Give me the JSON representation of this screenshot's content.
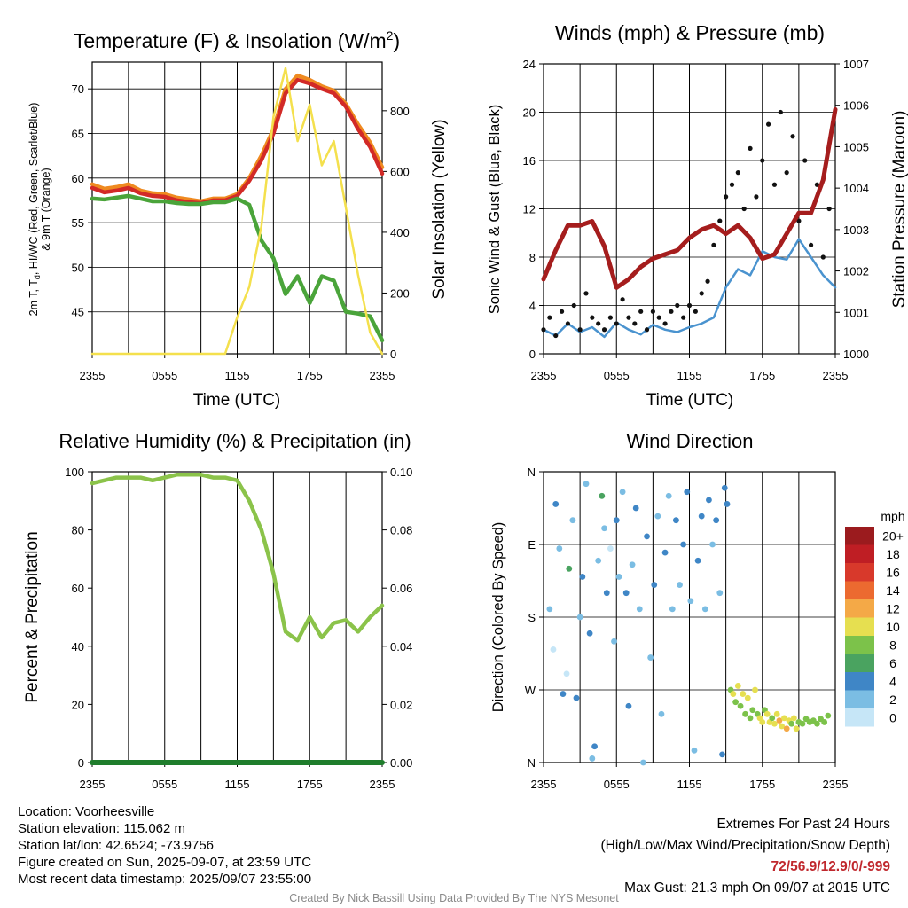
{
  "chart_data": [
    {
      "type": "line",
      "title": "Temperature (F) & Insolation (W/m²)",
      "xlabel": "Time (UTC)",
      "ylabel_lines": [
        "2m T, Td, HI/WC (Red, Green, Scarlet/Blue)",
        "& 9m T (Orange)"
      ],
      "y2label": "Solar Insolation (Yellow)",
      "x_ticks": [
        "2355",
        "0555",
        "1155",
        "1755",
        "2355"
      ],
      "ylim": [
        40.3,
        73
      ],
      "y_ticks": [
        45,
        50,
        55,
        60,
        65,
        70
      ],
      "y2lim": [
        0,
        960
      ],
      "y2_ticks": [
        0,
        200,
        400,
        600,
        800
      ],
      "grid": true,
      "series": [
        {
          "color": "#ef8a20",
          "axis": "left",
          "x": [
            0,
            1,
            2,
            3,
            4,
            5,
            6,
            7,
            8,
            9,
            10,
            11,
            12,
            13,
            14,
            15,
            16,
            17,
            18,
            19,
            20,
            21,
            22,
            23,
            24
          ],
          "values": [
            59.3,
            58.8,
            59.0,
            59.3,
            58.6,
            58.3,
            58.2,
            57.8,
            57.6,
            57.4,
            57.7,
            57.7,
            58.2,
            60.0,
            62.5,
            65.5,
            70.0,
            71.5,
            71.0,
            70.3,
            69.8,
            68.3,
            66.0,
            64.0,
            61.2
          ]
        },
        {
          "color": "#d22a27",
          "axis": "left",
          "x": [
            0,
            1,
            2,
            3,
            4,
            5,
            6,
            7,
            8,
            9,
            10,
            11,
            12,
            13,
            14,
            15,
            16,
            17,
            18,
            19,
            20,
            21,
            22,
            23,
            24
          ],
          "values": [
            58.9,
            58.4,
            58.6,
            58.9,
            58.3,
            58.0,
            57.9,
            57.5,
            57.3,
            57.2,
            57.5,
            57.5,
            58.0,
            59.7,
            62.0,
            65.0,
            69.5,
            71.0,
            70.6,
            70.0,
            69.5,
            68.0,
            65.5,
            63.5,
            60.5
          ]
        },
        {
          "color": "#4aa43a",
          "axis": "left",
          "x": [
            0,
            1,
            2,
            3,
            4,
            5,
            6,
            7,
            8,
            9,
            10,
            11,
            12,
            13,
            14,
            15,
            16,
            17,
            18,
            19,
            20,
            21,
            22,
            23,
            24
          ],
          "values": [
            57.7,
            57.6,
            57.8,
            58.0,
            57.7,
            57.4,
            57.4,
            57.2,
            57.1,
            57.1,
            57.3,
            57.3,
            57.7,
            57.0,
            53.0,
            51.0,
            47.0,
            49.0,
            46.0,
            49.0,
            48.5,
            45.0,
            44.8,
            44.5,
            41.8
          ]
        },
        {
          "color": "#f4e04d",
          "axis": "right",
          "x": [
            0,
            1,
            2,
            3,
            4,
            5,
            6,
            7,
            8,
            9,
            10,
            11,
            12,
            13,
            14,
            15,
            16,
            17,
            18,
            19,
            20,
            21,
            22,
            23,
            24
          ],
          "values": [
            0,
            0,
            0,
            0,
            0,
            0,
            0,
            0,
            0,
            0,
            0,
            0,
            120,
            220,
            420,
            780,
            940,
            700,
            820,
            620,
            700,
            480,
            260,
            70,
            0
          ]
        }
      ]
    },
    {
      "type": "scatter",
      "title": "Winds (mph) & Pressure (mb)",
      "xlabel": "Time (UTC)",
      "ylabel": "Sonic Wind & Gust (Blue, Black)",
      "y2label": "Station Pressure (Maroon)",
      "x_ticks": [
        "2355",
        "0555",
        "1155",
        "1755",
        "2355"
      ],
      "ylim": [
        0,
        24
      ],
      "y_ticks": [
        0,
        4,
        8,
        12,
        16,
        20,
        24
      ],
      "y2lim": [
        1000,
        1007
      ],
      "y2_ticks": [
        1000,
        1001,
        1002,
        1003,
        1004,
        1005,
        1006,
        1007
      ],
      "grid": true,
      "series": [
        {
          "color": "#4a93cf",
          "kind": "line",
          "axis": "left",
          "x": [
            0,
            1,
            2,
            3,
            4,
            5,
            6,
            7,
            8,
            9,
            10,
            11,
            12,
            13,
            14,
            15,
            16,
            17,
            18,
            19,
            20,
            21,
            22,
            23,
            24
          ],
          "values": [
            2.0,
            1.5,
            2.5,
            1.8,
            2.2,
            1.4,
            2.6,
            2.0,
            1.6,
            2.4,
            2.0,
            1.8,
            2.2,
            2.5,
            3.0,
            5.5,
            7.0,
            6.5,
            8.5,
            8.0,
            7.8,
            9.5,
            8.0,
            6.5,
            5.5
          ]
        },
        {
          "color": "#111111",
          "kind": "points",
          "axis": "left",
          "x": [
            0,
            0.5,
            1,
            1.5,
            2,
            2.5,
            3,
            3.5,
            4,
            4.5,
            5,
            5.5,
            6,
            6.5,
            7,
            7.5,
            8,
            8.5,
            9,
            9.5,
            10,
            10.5,
            11,
            11.5,
            12,
            12.5,
            13,
            13.5,
            14,
            14.5,
            15,
            15.5,
            16,
            16.5,
            17,
            17.5,
            18,
            18.5,
            19,
            19.5,
            20,
            20.5,
            21,
            21.5,
            22,
            22.5,
            23,
            23.5
          ],
          "values": [
            2.0,
            3.0,
            1.5,
            3.5,
            2.5,
            4.0,
            2.0,
            5.0,
            3.0,
            2.5,
            2.0,
            3.0,
            2.5,
            4.5,
            3.0,
            2.5,
            3.5,
            2.0,
            3.5,
            3.0,
            2.5,
            3.5,
            4.0,
            3.0,
            4.0,
            3.5,
            5.0,
            6.0,
            9.0,
            11.0,
            13.0,
            14.0,
            15.0,
            12.0,
            17.0,
            13.0,
            16.0,
            19.0,
            14.0,
            20.0,
            15.0,
            18.0,
            11.0,
            16.0,
            9.0,
            14.0,
            8.0,
            12.0
          ]
        },
        {
          "color": "#a51d1d",
          "kind": "line",
          "axis": "right",
          "x": [
            0,
            1,
            2,
            3,
            4,
            5,
            6,
            7,
            8,
            9,
            10,
            11,
            12,
            13,
            14,
            15,
            16,
            17,
            18,
            19,
            20,
            21,
            22,
            23,
            24
          ],
          "values": [
            1001.8,
            1002.5,
            1003.1,
            1003.1,
            1003.2,
            1002.6,
            1001.6,
            1001.8,
            1002.1,
            1002.3,
            1002.4,
            1002.5,
            1002.8,
            1003.0,
            1003.1,
            1002.9,
            1003.1,
            1002.8,
            1002.3,
            1002.4,
            1002.9,
            1003.4,
            1003.4,
            1004.2,
            1005.9
          ]
        }
      ]
    },
    {
      "type": "line",
      "title": "Relative Humidity (%) & Precipitation (in)",
      "ylabel": "Percent & Precipitation",
      "x_ticks": [
        "2355",
        "0555",
        "1155",
        "1755",
        "2355"
      ],
      "ylim": [
        0,
        100
      ],
      "y_ticks": [
        0,
        20,
        40,
        60,
        80,
        100
      ],
      "y2lim": [
        0,
        0.1
      ],
      "y2_ticks": [
        "0.00",
        "0.02",
        "0.04",
        "0.06",
        "0.08",
        "0.10"
      ],
      "grid": true,
      "series": [
        {
          "color": "#8bc34a",
          "axis": "left",
          "x": [
            0,
            1,
            2,
            3,
            4,
            5,
            6,
            7,
            8,
            9,
            10,
            11,
            12,
            13,
            14,
            15,
            16,
            17,
            18,
            19,
            20,
            21,
            22,
            23,
            24
          ],
          "values": [
            96,
            97,
            98,
            98,
            98,
            97,
            98,
            99,
            99,
            99,
            98,
            98,
            97,
            90,
            80,
            65,
            45,
            42,
            50,
            43,
            48,
            49,
            45,
            50,
            54
          ]
        },
        {
          "color": "#1f7d2c",
          "axis": "right",
          "x": [
            0,
            24
          ],
          "values": [
            0,
            0
          ]
        }
      ]
    },
    {
      "type": "scatter",
      "title": "Wind Direction",
      "ylabel": "Direction (Colored By Speed)",
      "x_ticks": [
        "2355",
        "0555",
        "1155",
        "1755",
        "2355"
      ],
      "y_ticks": [
        "N",
        "E",
        "S",
        "W",
        "N"
      ],
      "ylim": [
        0,
        360
      ],
      "grid": true,
      "legend_title": "mph",
      "legend_labels": [
        "0",
        "2",
        "4",
        "6",
        "8",
        "10",
        "12",
        "14",
        "16",
        "18",
        "20+"
      ],
      "legend_colors": [
        "#c6e6f7",
        "#7bbde3",
        "#3f86c6",
        "#4aa360",
        "#7cc24a",
        "#e6df50",
        "#f4a947",
        "#ec6a30",
        "#d8392b",
        "#bf1e24",
        "#9b1b1e"
      ],
      "points": [
        {
          "x": 0.5,
          "y": 170,
          "s": 1
        },
        {
          "x": 0.8,
          "y": 220,
          "s": 0
        },
        {
          "x": 1.0,
          "y": 40,
          "s": 2
        },
        {
          "x": 1.3,
          "y": 95,
          "s": 1
        },
        {
          "x": 1.6,
          "y": 275,
          "s": 2
        },
        {
          "x": 1.9,
          "y": 250,
          "s": 0
        },
        {
          "x": 2.1,
          "y": 120,
          "s": 3
        },
        {
          "x": 2.4,
          "y": 60,
          "s": 1
        },
        {
          "x": 2.7,
          "y": 280,
          "s": 2
        },
        {
          "x": 3.0,
          "y": 180,
          "s": 1
        },
        {
          "x": 3.2,
          "y": 130,
          "s": 2
        },
        {
          "x": 3.5,
          "y": 15,
          "s": 1
        },
        {
          "x": 3.8,
          "y": 200,
          "s": 2
        },
        {
          "x": 4.0,
          "y": 355,
          "s": 1
        },
        {
          "x": 4.2,
          "y": 340,
          "s": 2
        },
        {
          "x": 4.5,
          "y": 110,
          "s": 1
        },
        {
          "x": 4.8,
          "y": 30,
          "s": 3
        },
        {
          "x": 5.0,
          "y": 70,
          "s": 1
        },
        {
          "x": 5.2,
          "y": 150,
          "s": 2
        },
        {
          "x": 5.5,
          "y": 95,
          "s": 0
        },
        {
          "x": 5.8,
          "y": 210,
          "s": 1
        },
        {
          "x": 6.0,
          "y": 60,
          "s": 2
        },
        {
          "x": 6.2,
          "y": 130,
          "s": 1
        },
        {
          "x": 6.5,
          "y": 25,
          "s": 1
        },
        {
          "x": 6.8,
          "y": 150,
          "s": 2
        },
        {
          "x": 7.0,
          "y": 290,
          "s": 2
        },
        {
          "x": 7.3,
          "y": 115,
          "s": 1
        },
        {
          "x": 7.6,
          "y": 45,
          "s": 2
        },
        {
          "x": 7.9,
          "y": 170,
          "s": 1
        },
        {
          "x": 8.2,
          "y": 360,
          "s": 1
        },
        {
          "x": 8.5,
          "y": 80,
          "s": 2
        },
        {
          "x": 8.8,
          "y": 230,
          "s": 1
        },
        {
          "x": 9.1,
          "y": 140,
          "s": 2
        },
        {
          "x": 9.4,
          "y": 55,
          "s": 1
        },
        {
          "x": 9.7,
          "y": 300,
          "s": 1
        },
        {
          "x": 10.0,
          "y": 100,
          "s": 2
        },
        {
          "x": 10.3,
          "y": 30,
          "s": 1
        },
        {
          "x": 10.6,
          "y": 170,
          "s": 1
        },
        {
          "x": 10.9,
          "y": 60,
          "s": 2
        },
        {
          "x": 11.2,
          "y": 140,
          "s": 1
        },
        {
          "x": 11.5,
          "y": 90,
          "s": 2
        },
        {
          "x": 11.8,
          "y": 25,
          "s": 2
        },
        {
          "x": 12.1,
          "y": 160,
          "s": 1
        },
        {
          "x": 12.4,
          "y": 345,
          "s": 1
        },
        {
          "x": 12.7,
          "y": 110,
          "s": 2
        },
        {
          "x": 13.0,
          "y": 55,
          "s": 2
        },
        {
          "x": 13.3,
          "y": 170,
          "s": 1
        },
        {
          "x": 13.6,
          "y": 35,
          "s": 2
        },
        {
          "x": 13.9,
          "y": 90,
          "s": 1
        },
        {
          "x": 14.2,
          "y": 60,
          "s": 2
        },
        {
          "x": 14.5,
          "y": 150,
          "s": 1
        },
        {
          "x": 14.7,
          "y": 350,
          "s": 2
        },
        {
          "x": 14.9,
          "y": 20,
          "s": 2
        },
        {
          "x": 15.1,
          "y": 40,
          "s": 2
        },
        {
          "x": 15.4,
          "y": 270,
          "s": 4
        },
        {
          "x": 15.6,
          "y": 275,
          "s": 5
        },
        {
          "x": 15.8,
          "y": 285,
          "s": 4
        },
        {
          "x": 16.0,
          "y": 265,
          "s": 5
        },
        {
          "x": 16.2,
          "y": 290,
          "s": 4
        },
        {
          "x": 16.4,
          "y": 275,
          "s": 5
        },
        {
          "x": 16.6,
          "y": 300,
          "s": 4
        },
        {
          "x": 16.8,
          "y": 280,
          "s": 5
        },
        {
          "x": 17.0,
          "y": 305,
          "s": 4
        },
        {
          "x": 17.2,
          "y": 295,
          "s": 4
        },
        {
          "x": 17.4,
          "y": 270,
          "s": 5
        },
        {
          "x": 17.6,
          "y": 300,
          "s": 4
        },
        {
          "x": 17.8,
          "y": 305,
          "s": 5
        },
        {
          "x": 18.0,
          "y": 310,
          "s": 5
        },
        {
          "x": 18.2,
          "y": 295,
          "s": 4
        },
        {
          "x": 18.4,
          "y": 300,
          "s": 5
        },
        {
          "x": 18.6,
          "y": 310,
          "s": 5
        },
        {
          "x": 18.8,
          "y": 305,
          "s": 4
        },
        {
          "x": 19.0,
          "y": 312,
          "s": 5
        },
        {
          "x": 19.2,
          "y": 300,
          "s": 5
        },
        {
          "x": 19.4,
          "y": 308,
          "s": 6
        },
        {
          "x": 19.6,
          "y": 315,
          "s": 5
        },
        {
          "x": 19.8,
          "y": 305,
          "s": 5
        },
        {
          "x": 20.0,
          "y": 318,
          "s": 6
        },
        {
          "x": 20.2,
          "y": 308,
          "s": 5
        },
        {
          "x": 20.4,
          "y": 312,
          "s": 4
        },
        {
          "x": 20.6,
          "y": 305,
          "s": 5
        },
        {
          "x": 20.8,
          "y": 318,
          "s": 5
        },
        {
          "x": 21.0,
          "y": 310,
          "s": 4
        },
        {
          "x": 21.3,
          "y": 312,
          "s": 4
        },
        {
          "x": 21.6,
          "y": 306,
          "s": 4
        },
        {
          "x": 21.9,
          "y": 310,
          "s": 4
        },
        {
          "x": 22.2,
          "y": 308,
          "s": 4
        },
        {
          "x": 22.5,
          "y": 312,
          "s": 4
        },
        {
          "x": 22.8,
          "y": 306,
          "s": 4
        },
        {
          "x": 23.1,
          "y": 310,
          "s": 4
        },
        {
          "x": 23.4,
          "y": 302,
          "s": 4
        }
      ]
    }
  ],
  "info_left": {
    "location": "Location: Voorheesville",
    "elevation": "Station elevation: 115.062 m",
    "latlon": "Station lat/lon: 42.6524; -73.9756",
    "created": "Figure created on Sun, 2025-09-07, at 23:59 UTC",
    "recent": "Most recent data timestamp: 2025/09/07 23:55:00"
  },
  "info_right": {
    "line1": "Extremes For Past 24 Hours",
    "line2": "(High/Low/Max Wind/Precipitation/Snow Depth)",
    "values": "72/56.9/12.9/0/-999",
    "gust": "Max Gust: 21.3 mph On 09/07 at 2015 UTC"
  },
  "credit": "Created By Nick Bassill Using Data Provided By The NYS Mesonet"
}
